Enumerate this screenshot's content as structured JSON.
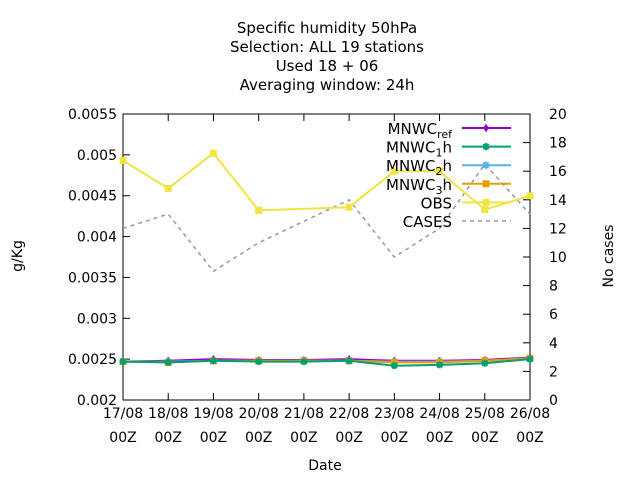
{
  "chart_data": {
    "type": "line",
    "title_lines": [
      "Specific humidity 50hPa",
      "Selection: ALL      19 stations",
      "Used  18 + 06",
      "Averaging window: 24h"
    ],
    "xlabel": "Date",
    "ylabel": "g/Kg",
    "y2label": "No cases",
    "ylim": [
      0.002,
      0.0055
    ],
    "y2lim": [
      0,
      20
    ],
    "yticks": [
      "0.002",
      "0.0025",
      "0.003",
      "0.0035",
      "0.004",
      "0.0045",
      "0.005",
      "0.0055"
    ],
    "y2ticks": [
      "0",
      "2",
      "4",
      "6",
      "8",
      "10",
      "12",
      "14",
      "16",
      "18",
      "20"
    ],
    "categories": [
      "17/08",
      "18/08",
      "19/08",
      "20/08",
      "21/08",
      "22/08",
      "23/08",
      "24/08",
      "25/08",
      "26/08"
    ],
    "category_sublabel": "00Z",
    "grid": false,
    "legend_position": "top-right",
    "series": [
      {
        "name": "MNWC_ref",
        "axis": "y1",
        "color": "#9400d3",
        "marker": "plus",
        "x": [
          0,
          1,
          2,
          3,
          4,
          5,
          6,
          7,
          8,
          9
        ],
        "values": [
          0.00247,
          0.00248,
          0.0025,
          0.00249,
          0.00249,
          0.0025,
          0.00248,
          0.00248,
          0.00249,
          0.00252
        ]
      },
      {
        "name": "MNWC_1h",
        "axis": "y1",
        "color": "#009e73",
        "marker": "star",
        "x": [
          0,
          1,
          2,
          3,
          4,
          5,
          6,
          7,
          8,
          9
        ],
        "values": [
          0.00247,
          0.00246,
          0.00248,
          0.00247,
          0.00247,
          0.00248,
          0.00242,
          0.00243,
          0.00245,
          0.0025
        ]
      },
      {
        "name": "MNWC_2h",
        "axis": "y1",
        "color": "#56b4e9",
        "marker": "star",
        "x": [
          0,
          1,
          2,
          3,
          4,
          5,
          6,
          7,
          8,
          9
        ],
        "values": [
          0.00247,
          0.00247,
          0.00248,
          0.00248,
          0.00248,
          0.00248,
          0.00247,
          0.00247,
          0.00248,
          0.00251
        ]
      },
      {
        "name": "MNWC_3h",
        "axis": "y1",
        "color": "#e69f00",
        "marker": "square",
        "x": [
          0,
          1,
          2,
          3,
          4,
          5,
          6,
          7,
          8,
          9
        ],
        "values": [
          0.00247,
          0.00246,
          0.00248,
          0.00248,
          0.00248,
          0.00248,
          0.00246,
          0.00246,
          0.00248,
          0.00251
        ]
      },
      {
        "name": "OBS",
        "axis": "y1",
        "color": "#f0e442",
        "marker": "square",
        "x": [
          0,
          1,
          2,
          3,
          5,
          6,
          7,
          8,
          9
        ],
        "values": [
          0.00493,
          0.00459,
          0.00502,
          0.00432,
          0.00436,
          0.0048,
          0.0048,
          0.00433,
          0.0045
        ]
      },
      {
        "name": "CASES",
        "axis": "y2",
        "color": "#999999",
        "dash": true,
        "x": [
          0,
          1,
          2,
          3,
          4,
          5,
          6,
          7,
          8,
          9
        ],
        "values": [
          12,
          13,
          9,
          11,
          12.5,
          14,
          10,
          12,
          16.5,
          13
        ]
      }
    ],
    "legend": [
      {
        "main": "MNWC",
        "sub": "ref",
        "series": 0
      },
      {
        "main": "MNWC",
        "sub": "1",
        "after": "h",
        "series": 1
      },
      {
        "main": "MNWC",
        "sub": "2",
        "after": "h",
        "series": 2
      },
      {
        "main": "MNWC",
        "sub": "3",
        "after": "h",
        "series": 3
      },
      {
        "main": "OBS",
        "series": 4
      },
      {
        "main": "CASES",
        "series": 5
      }
    ]
  }
}
